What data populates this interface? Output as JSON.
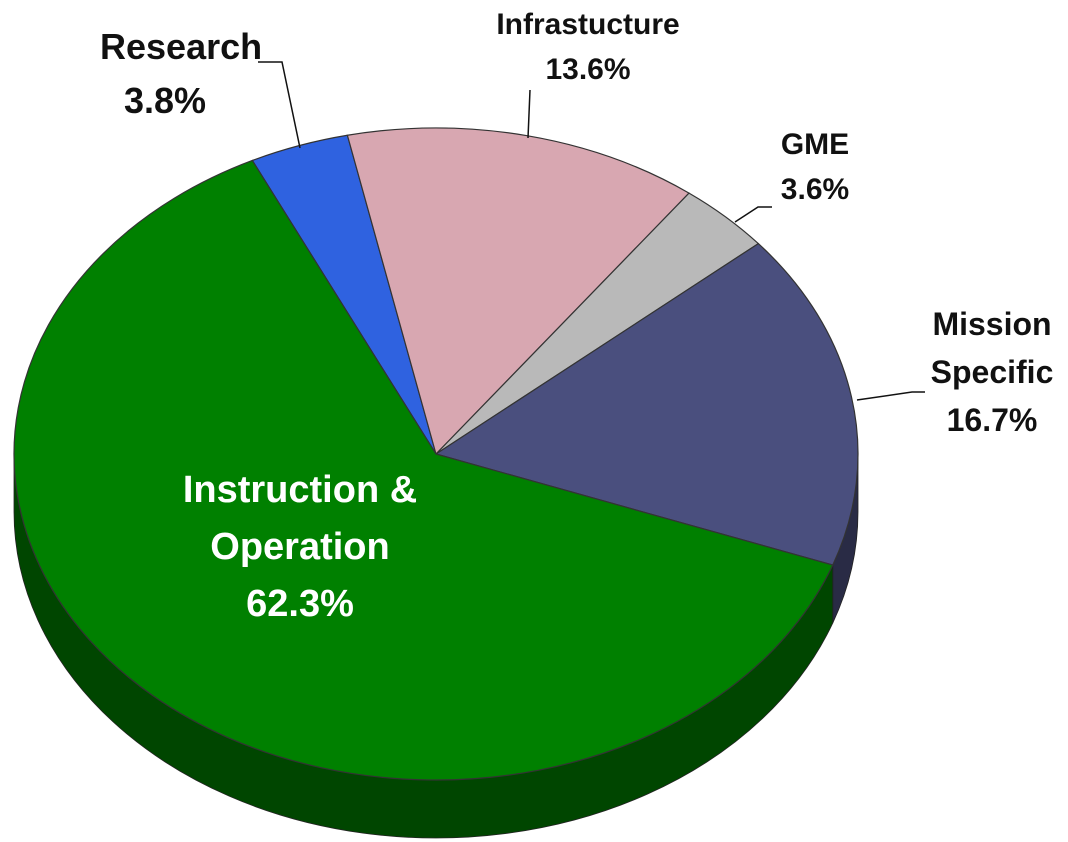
{
  "chart_data": {
    "type": "pie",
    "categories": [
      "Research",
      "Infrastucture",
      "GME",
      "Mission Specific",
      "Instruction & Operation"
    ],
    "values": [
      3.8,
      13.6,
      3.6,
      16.7,
      62.3
    ],
    "value_labels": [
      "3.8%",
      "13.6%",
      "3.6%",
      "16.7%",
      "62.3%"
    ],
    "colors": [
      "#2f62e0",
      "#d8a7b1",
      "#b9b9b9",
      "#4a4f7e",
      "#008000"
    ]
  }
}
